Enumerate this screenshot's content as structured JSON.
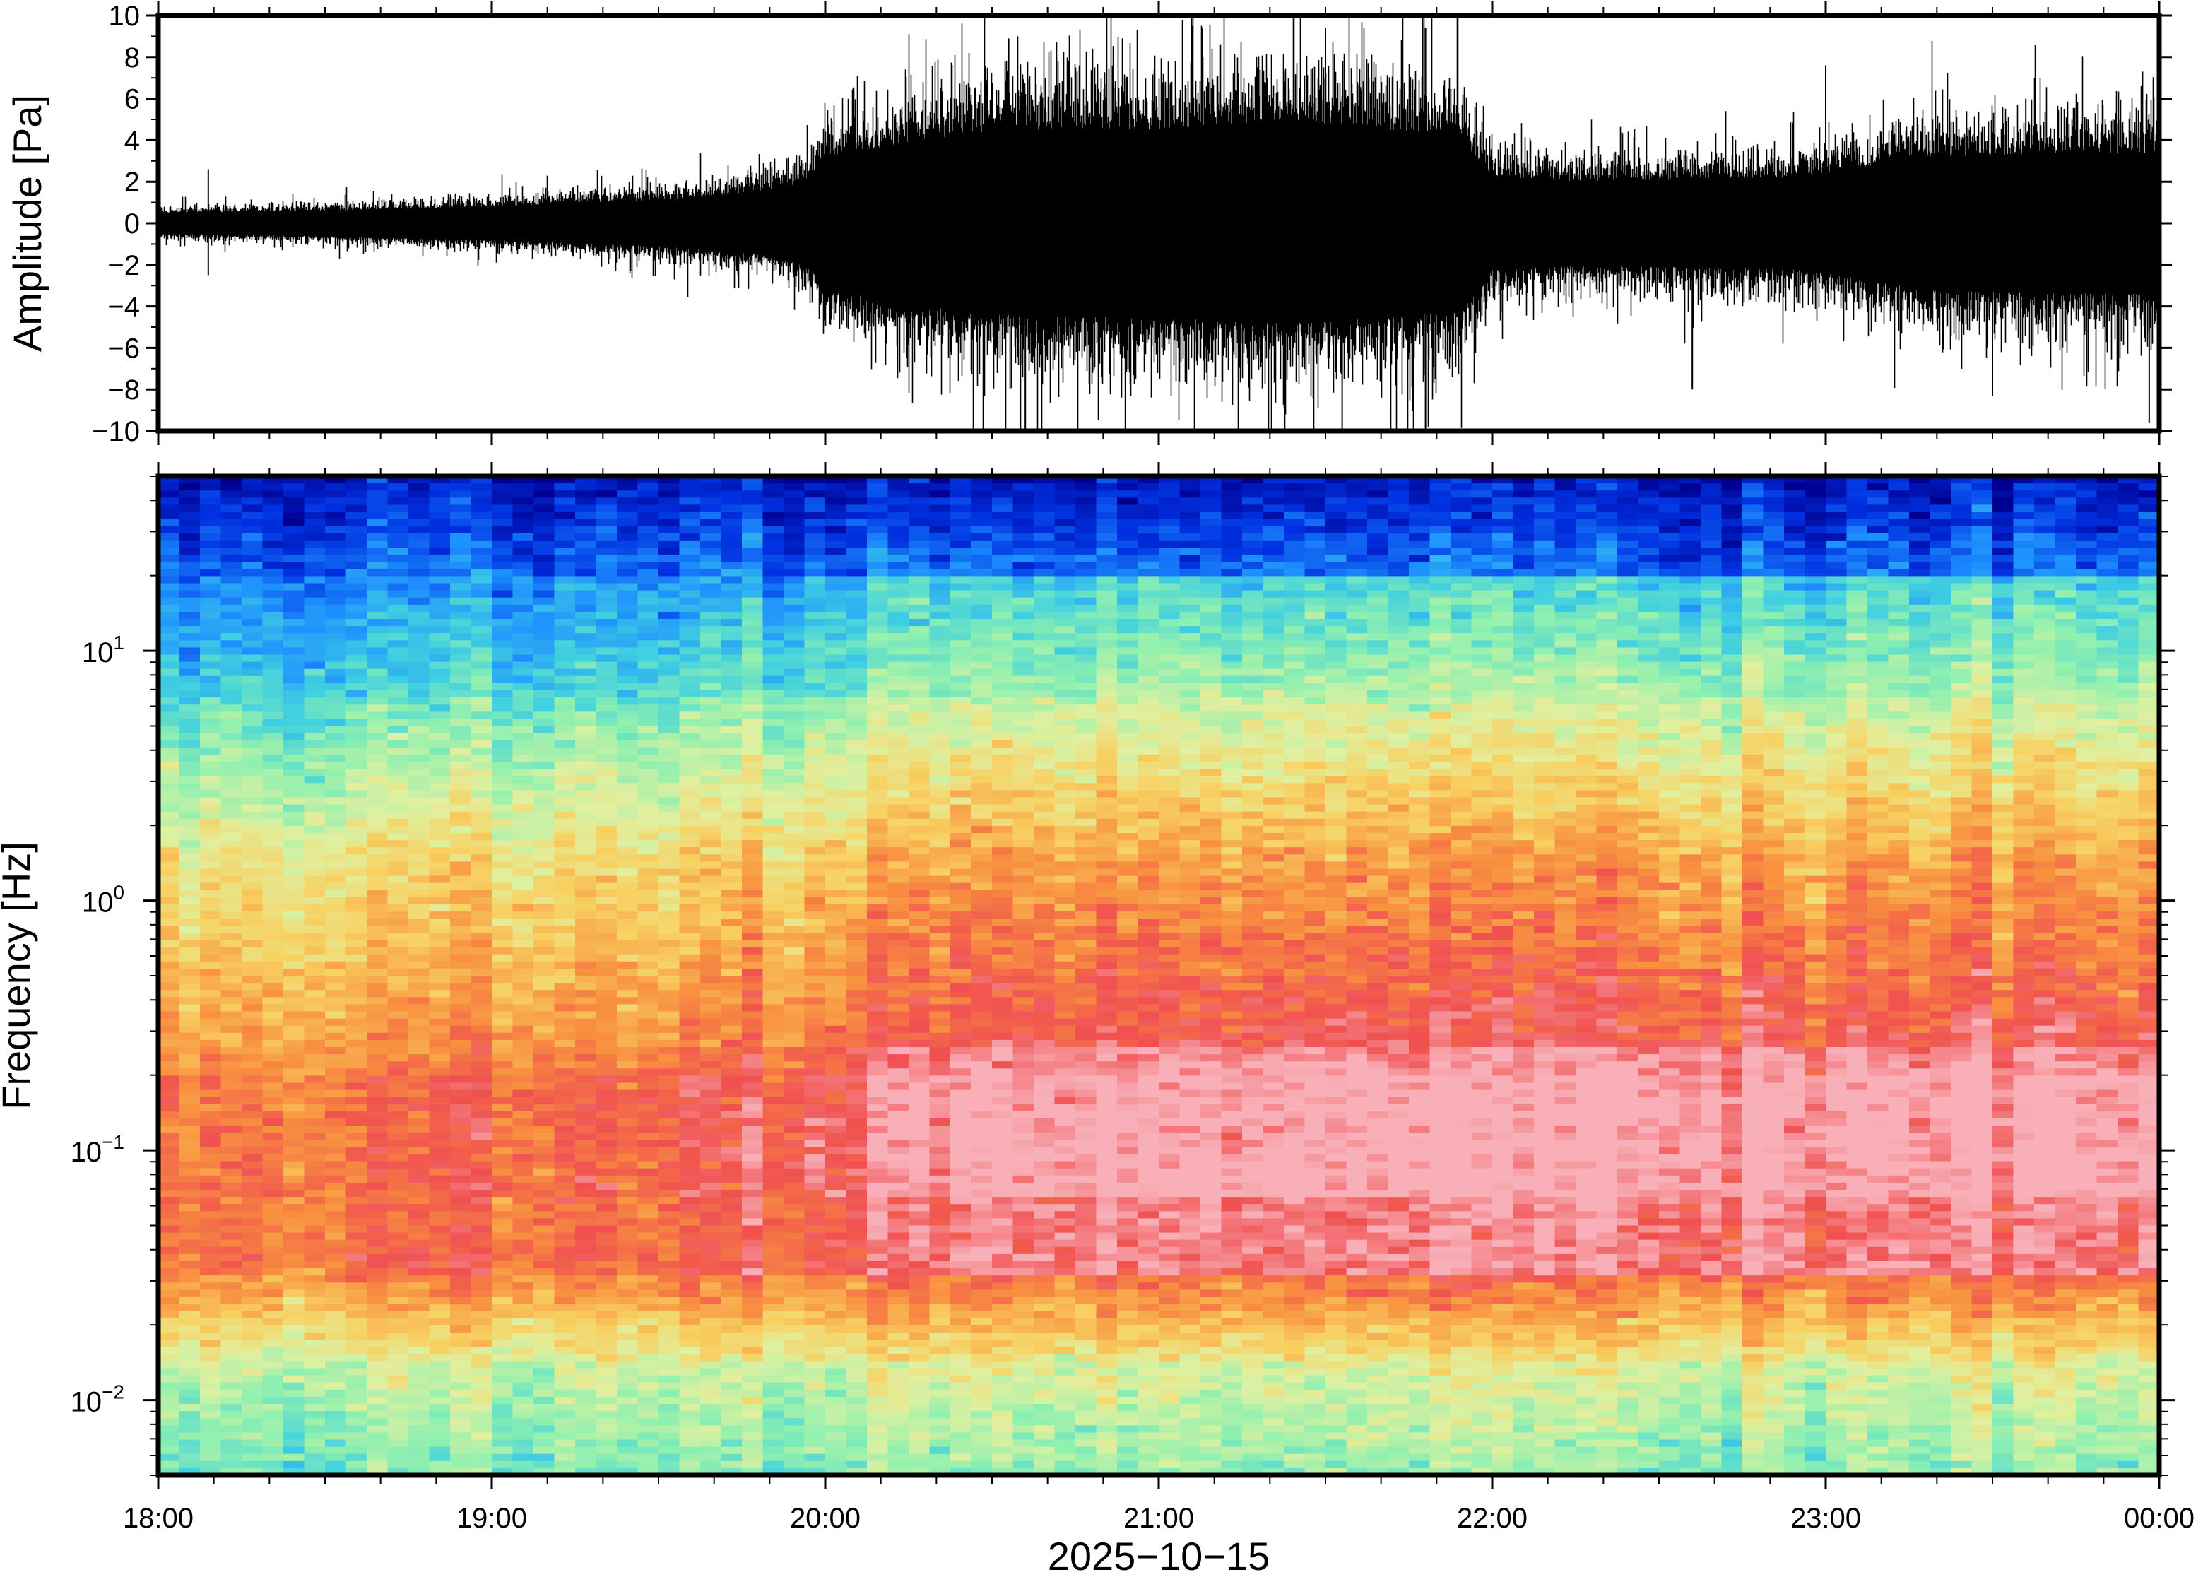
{
  "chart_data": [
    {
      "type": "line",
      "name": "waveform",
      "ylabel": "Amplitude [Pa]",
      "xlim": [
        "18:00",
        "00:00"
      ],
      "ylim": [
        -10,
        10
      ],
      "y_ticks": [
        "10",
        "8",
        "6",
        "4",
        "2",
        "0",
        "−2",
        "−4",
        "−6",
        "−8",
        "−10"
      ],
      "y_tick_values": [
        10,
        8,
        6,
        4,
        2,
        0,
        -2,
        -4,
        -6,
        -8,
        -10
      ],
      "envelope": {
        "x_hours": [
          18.0,
          18.5,
          19.0,
          19.5,
          19.8,
          19.95,
          20.0,
          20.3,
          20.6,
          21.0,
          21.3,
          21.6,
          21.9,
          22.0,
          22.3,
          22.6,
          22.9,
          23.0,
          23.3,
          23.6,
          24.0
        ],
        "amplitude": [
          0.5,
          0.6,
          0.8,
          1.1,
          1.5,
          2.0,
          3.2,
          4.0,
          4.5,
          4.5,
          4.8,
          4.6,
          4.2,
          2.2,
          2.0,
          2.1,
          2.2,
          2.4,
          3.2,
          3.3,
          3.4
        ]
      },
      "peaks_upper": [
        [
          18.15,
          2.6
        ],
        [
          20.55,
          8.9
        ],
        [
          21.1,
          9.5
        ],
        [
          21.5,
          9.4
        ],
        [
          21.8,
          9.4
        ],
        [
          22.7,
          5.4
        ],
        [
          23.0,
          7.6
        ],
        [
          23.6,
          6.0
        ],
        [
          23.95,
          7.3
        ]
      ],
      "peaks_lower": [
        [
          18.15,
          -2.5
        ],
        [
          20.6,
          -10
        ],
        [
          20.9,
          -10
        ],
        [
          21.55,
          -10
        ],
        [
          21.8,
          -10
        ],
        [
          22.6,
          -8.0
        ],
        [
          23.5,
          -8.3
        ],
        [
          23.97,
          -9.6
        ]
      ]
    },
    {
      "type": "heatmap",
      "name": "spectrogram",
      "ylabel": "Frequency [Hz]",
      "xlabel": "2025−10−15",
      "x_ticks": [
        "18:00",
        "19:00",
        "20:00",
        "21:00",
        "22:00",
        "23:00",
        "00:00"
      ],
      "y_scale": "log",
      "ylim_hz": [
        0.005,
        50
      ],
      "y_ticks": [
        {
          "base": "10",
          "exp": "1",
          "value": 10
        },
        {
          "base": "10",
          "exp": "0",
          "value": 1
        },
        {
          "base": "10",
          "exp": "−1",
          "value": 0.1
        },
        {
          "base": "10",
          "exp": "−2",
          "value": 0.01
        }
      ],
      "colormap": [
        "#00008f",
        "#0030e0",
        "#1e90ff",
        "#40d0e0",
        "#8ef0b0",
        "#e0f0a0",
        "#f8d060",
        "#f89040",
        "#f05050",
        "#f8b0b8"
      ]
    }
  ]
}
